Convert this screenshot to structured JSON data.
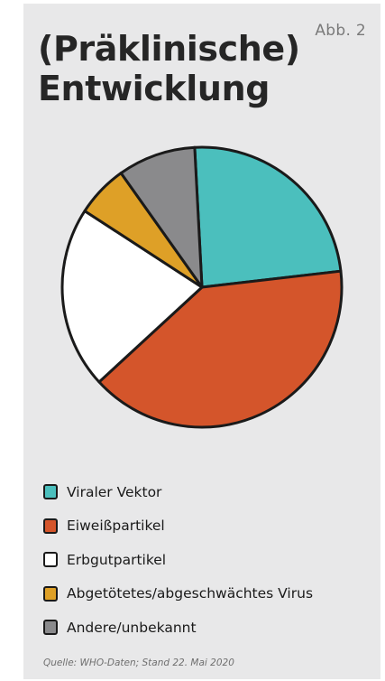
{
  "figure_label": "Abb. 2",
  "title_line1": "(Präklinische)",
  "title_line2": "Entwicklung",
  "source": "Quelle: WHO-Daten; Stand 22. Mai 2020",
  "chart_data": {
    "type": "pie",
    "title": "(Präklinische) Entwicklung",
    "legend_placement": "bottom",
    "start_angle_deg": -3,
    "slices": [
      {
        "label": "Viraler Vektor",
        "value": 24,
        "color": "#4bbfbd"
      },
      {
        "label": "Eiweißpartikel",
        "value": 40,
        "color": "#d4552b"
      },
      {
        "label": "Erbgutpartikel",
        "value": 21,
        "color": "#ffffff"
      },
      {
        "label": "Abgetötetes/abgeschwächtes Virus",
        "value": 6,
        "color": "#dea027"
      },
      {
        "label": "Andere/unbekannt",
        "value": 9,
        "color": "#8a8a8c"
      }
    ]
  }
}
